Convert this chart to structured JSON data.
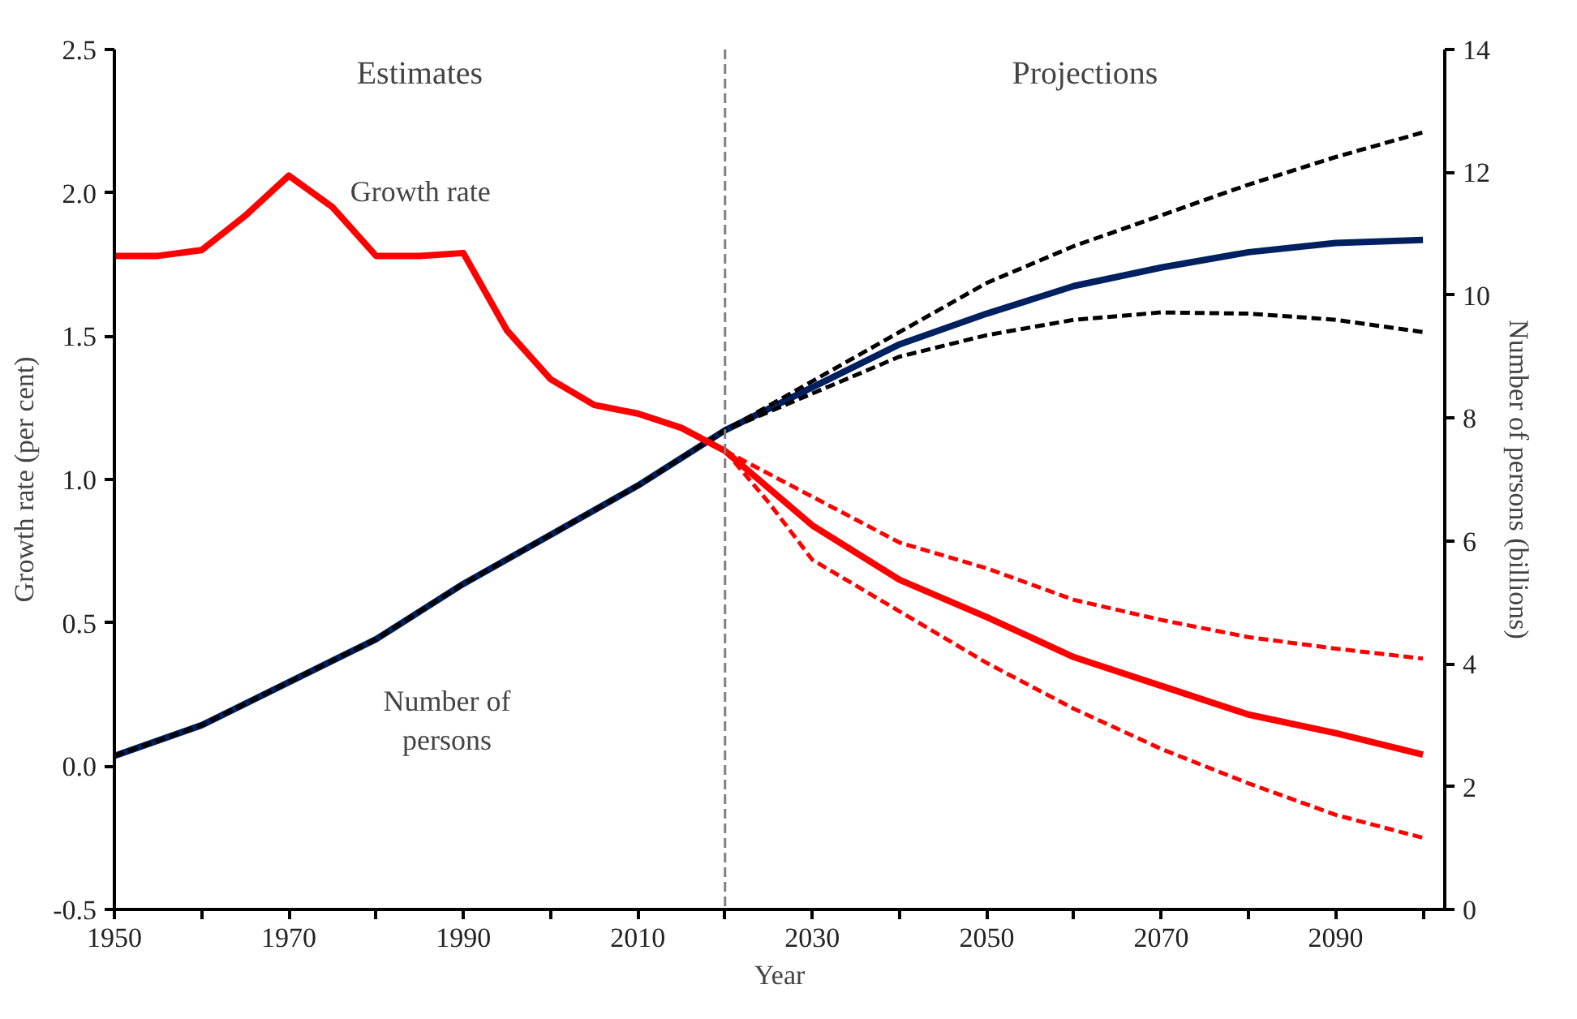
{
  "chart_data": {
    "type": "line",
    "xlabel": "Year",
    "ylabel": "Growth rate (per cent)",
    "y2label": "Number of persons (billions)",
    "xlim": [
      1950,
      2102.5
    ],
    "ylim": [
      -0.5,
      2.5
    ],
    "y2lim": [
      0,
      14
    ],
    "xticks": [
      1950,
      {
        "value": 1960,
        "label": null
      },
      1970,
      {
        "value": 1980,
        "label": null
      },
      1990,
      {
        "value": 2000,
        "label": null
      },
      2010,
      {
        "value": 2020,
        "label": null
      },
      2030,
      {
        "value": 2040,
        "label": null
      },
      2050,
      {
        "value": 2060,
        "label": null
      },
      2070,
      {
        "value": 2080,
        "label": null
      },
      2090,
      {
        "value": 2100,
        "label": null
      }
    ],
    "yticks": [
      {
        "value": -0.5,
        "label": "-0.5"
      },
      {
        "value": 0,
        "label": "0.0"
      },
      0.5,
      {
        "value": 1,
        "label": "1.0"
      },
      1.5,
      {
        "value": 2,
        "label": "2.0"
      },
      2.5
    ],
    "y2ticks": [
      0,
      2,
      4,
      6,
      8,
      10,
      12,
      14
    ],
    "grid": false,
    "marker": "none",
    "ref_lines": [
      {
        "axis": "x",
        "value": 2020,
        "label": null,
        "color": "#808080",
        "line_style": "dashed"
      }
    ],
    "annotations": [
      "Estimates",
      "Projections",
      "Growth rate",
      "Number of\npersons"
    ],
    "series": [
      {
        "color": "#002060",
        "axis": "y2",
        "line_style": "solid",
        "x": [
          1950,
          1960,
          1970,
          1980,
          1990,
          2000,
          2010,
          2020,
          2030,
          2040,
          2050,
          2060,
          2070,
          2080,
          2090,
          2100
        ],
        "values": [
          2.5,
          3.0,
          3.7,
          4.4,
          5.3,
          6.1,
          6.9,
          7.8,
          8.5,
          9.2,
          9.7,
          10.15,
          10.45,
          10.7,
          10.85,
          10.9
        ]
      },
      {
        "color": "#000000",
        "axis": "y2",
        "line_style": "dashed",
        "x": [
          1950,
          1960,
          1970,
          1980,
          1990,
          2000,
          2010,
          2020,
          2030,
          2040,
          2050,
          2060,
          2070,
          2080,
          2090,
          2100
        ],
        "values": [
          2.5,
          3.0,
          3.7,
          4.4,
          5.3,
          6.1,
          6.9,
          7.8,
          8.6,
          9.4,
          10.2,
          10.8,
          11.3,
          11.8,
          12.25,
          12.65
        ]
      },
      {
        "color": "#000000",
        "axis": "y2",
        "line_style": "dashed",
        "x": [
          1950,
          1960,
          1970,
          1980,
          1990,
          2000,
          2010,
          2020,
          2030,
          2040,
          2050,
          2060,
          2070,
          2080,
          2090,
          2100
        ],
        "values": [
          2.5,
          3.0,
          3.7,
          4.4,
          5.3,
          6.1,
          6.9,
          7.8,
          8.4,
          9.0,
          9.35,
          9.6,
          9.72,
          9.7,
          9.6,
          9.4
        ]
      },
      {
        "color": "#ff0000",
        "axis": "y",
        "line_style": "solid",
        "x": [
          1950,
          1955,
          1960,
          1965,
          1970,
          1975,
          1980,
          1985,
          1990,
          1995,
          2000,
          2005,
          2010,
          2015,
          2020,
          2030,
          2040,
          2050,
          2060,
          2070,
          2080,
          2090,
          2100
        ],
        "values": [
          1.78,
          1.78,
          1.8,
          1.92,
          2.06,
          1.95,
          1.78,
          1.78,
          1.79,
          1.52,
          1.35,
          1.26,
          1.23,
          1.18,
          1.1,
          0.84,
          0.65,
          0.52,
          0.38,
          0.28,
          0.18,
          0.115,
          0.04
        ]
      },
      {
        "color": "#ff0000",
        "axis": "y",
        "line_style": "dashed",
        "x": [
          2020,
          2030,
          2040,
          2050,
          2060,
          2070,
          2080,
          2090,
          2100
        ],
        "values": [
          1.1,
          0.94,
          0.78,
          0.69,
          0.58,
          0.51,
          0.45,
          0.41,
          0.375
        ]
      },
      {
        "color": "#ff0000",
        "axis": "y",
        "line_style": "dashed",
        "x": [
          2020,
          2025,
          2030,
          2040,
          2050,
          2060,
          2070,
          2080,
          2090,
          2100
        ],
        "values": [
          1.1,
          0.92,
          0.72,
          0.54,
          0.36,
          0.2,
          0.06,
          -0.06,
          -0.17,
          -0.25
        ]
      }
    ]
  }
}
